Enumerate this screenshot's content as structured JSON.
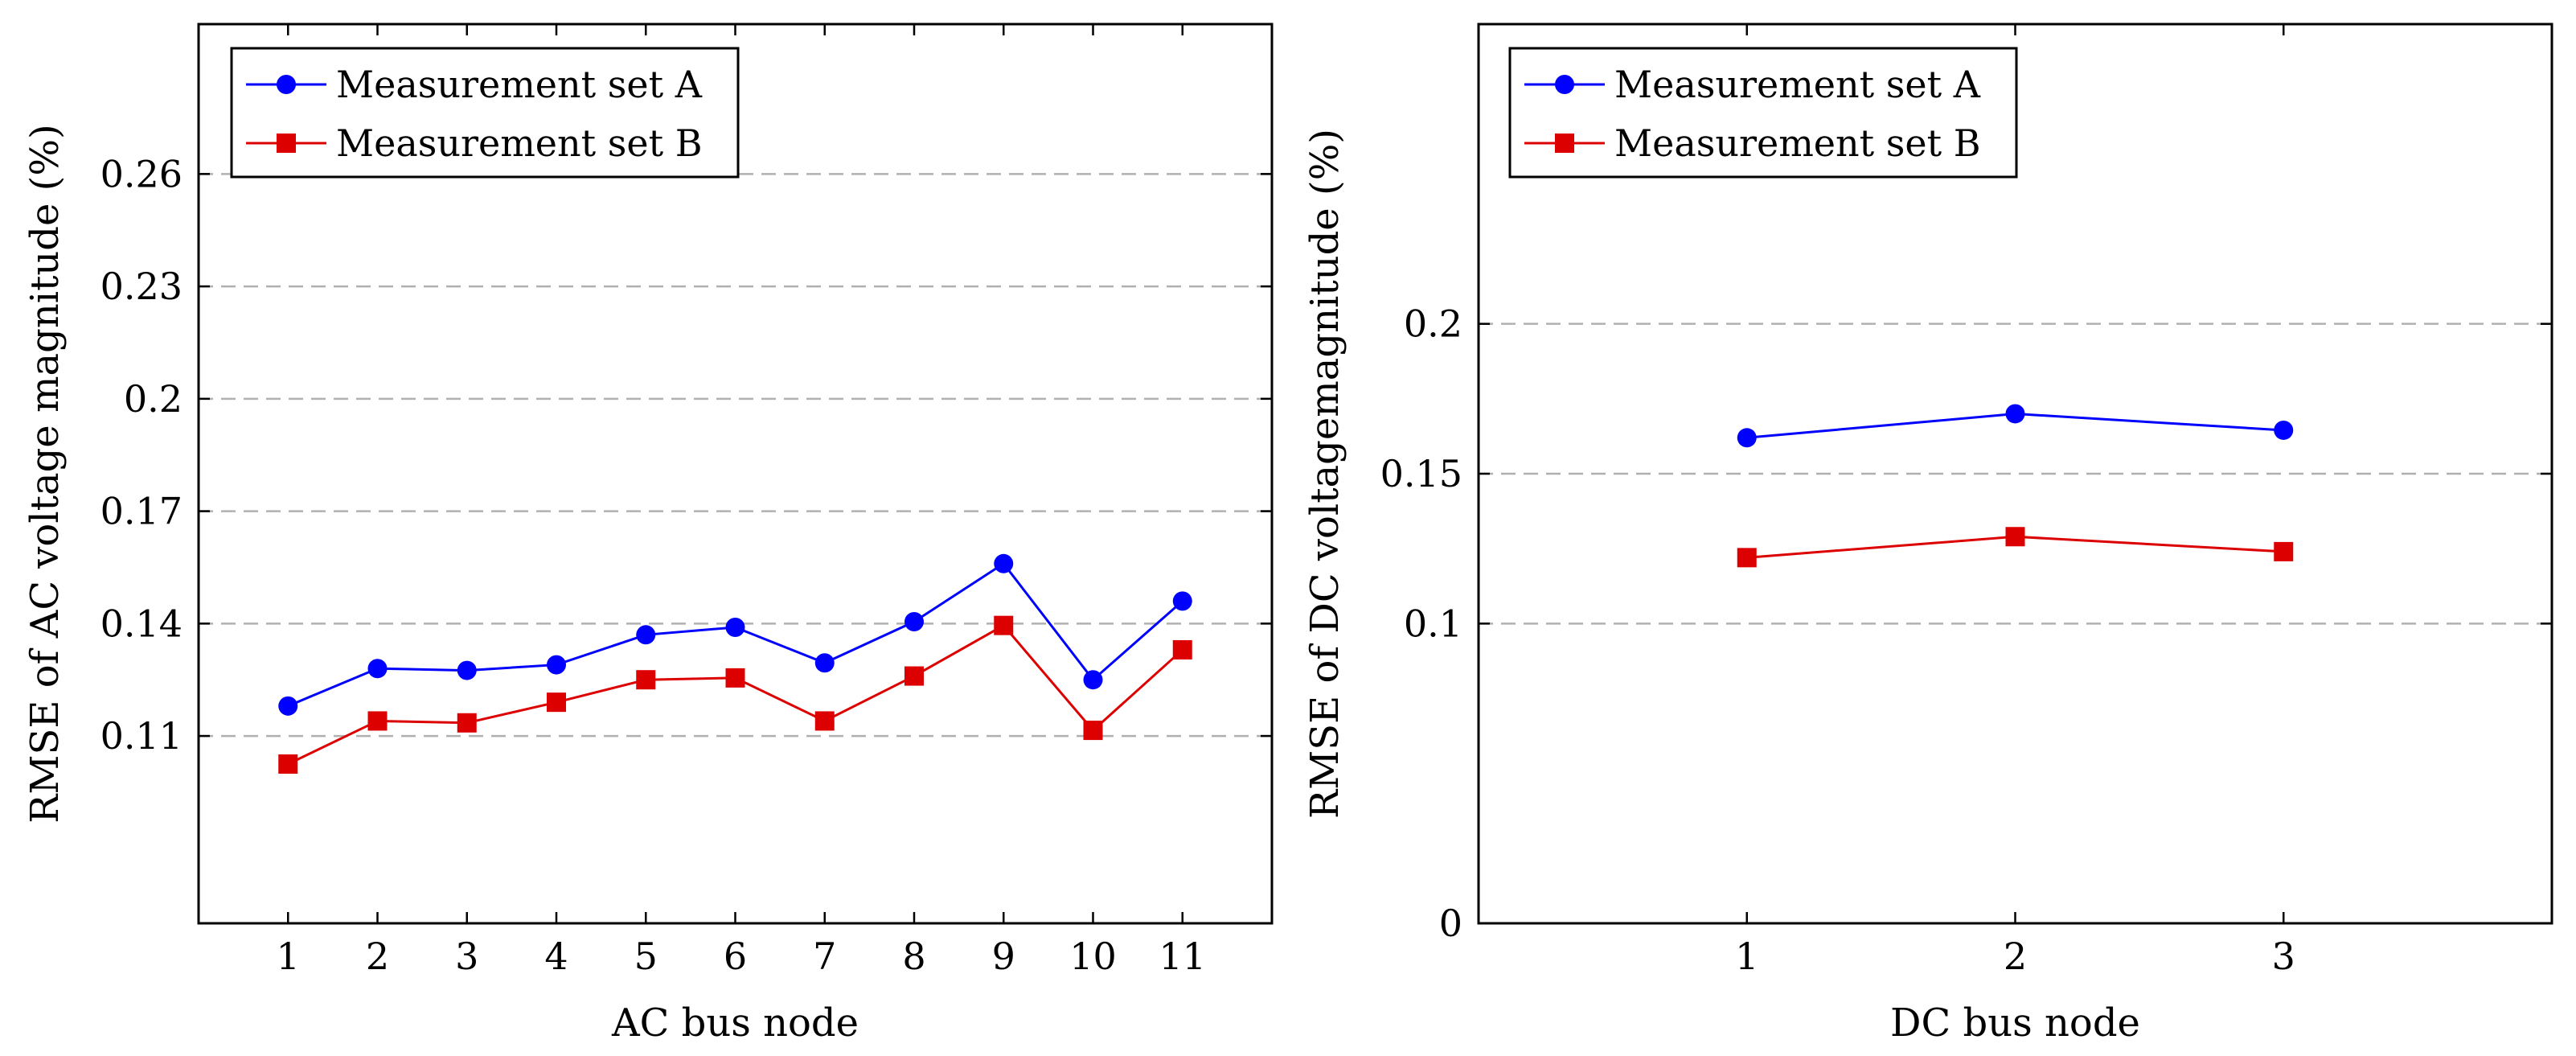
{
  "chart_data": [
    {
      "type": "line",
      "title": "",
      "xlabel": "AC bus node",
      "ylabel": "RMSE of AC voltage magnitude (%)",
      "categories": [
        1,
        2,
        3,
        4,
        5,
        6,
        7,
        8,
        9,
        10,
        11
      ],
      "x_tick_labels": [
        "1",
        "2",
        "3",
        "4",
        "5",
        "6",
        "7",
        "8",
        "9",
        "10",
        "11"
      ],
      "xlim": [
        0,
        12
      ],
      "ylim": [
        0.06,
        0.3
      ],
      "y_ticks": [
        0.11,
        0.14,
        0.17,
        0.2,
        0.23,
        0.26
      ],
      "y_tick_labels": [
        "0.11",
        "0.14",
        "0.17",
        "0.2",
        "0.23",
        "0.26"
      ],
      "grid": "horizontal dashed",
      "legend_position": "top-left",
      "series": [
        {
          "name": "Measurement set A",
          "color": "#0000ff",
          "marker": "circle",
          "values": [
            0.118,
            0.128,
            0.1275,
            0.129,
            0.137,
            0.139,
            0.1295,
            0.1405,
            0.156,
            0.125,
            0.146
          ]
        },
        {
          "name": "Measurement set B",
          "color": "#dd0000",
          "marker": "square",
          "values": [
            0.1025,
            0.114,
            0.1135,
            0.119,
            0.125,
            0.1255,
            0.114,
            0.126,
            0.1395,
            0.1115,
            0.133
          ]
        }
      ]
    },
    {
      "type": "line",
      "title": "",
      "xlabel": "DC bus node",
      "ylabel": "RMSE of DC voltagemagnitude (%)",
      "categories": [
        1,
        2,
        3
      ],
      "x_tick_labels": [
        "1",
        "2",
        "3"
      ],
      "xlim": [
        0,
        4
      ],
      "ylim": [
        0,
        0.3
      ],
      "y_ticks": [
        0,
        0.1,
        0.15,
        0.2
      ],
      "y_tick_labels": [
        "0",
        "0.1",
        "0.15",
        "0.2"
      ],
      "grid": "horizontal dashed",
      "legend_position": "top-left",
      "series": [
        {
          "name": "Measurement set A",
          "color": "#0000ff",
          "marker": "circle",
          "values": [
            0.162,
            0.17,
            0.1645
          ]
        },
        {
          "name": "Measurement set B",
          "color": "#dd0000",
          "marker": "square",
          "values": [
            0.122,
            0.129,
            0.124
          ]
        }
      ]
    }
  ]
}
